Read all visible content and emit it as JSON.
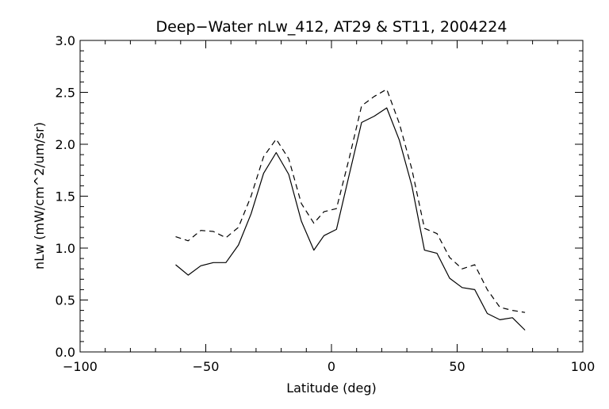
{
  "chart_data": {
    "type": "line",
    "title": "Deep−Water nLw_412, AT29 & ST11, 2004224",
    "xlabel": "Latitude (deg)",
    "ylabel": "nLw (mW/cm^2/um/sr)",
    "xlim": [
      -100,
      100
    ],
    "ylim": [
      0.0,
      3.0
    ],
    "xticks": [
      -100,
      -50,
      0,
      50,
      100
    ],
    "xtick_labels": [
      "−100",
      "−50",
      "0",
      "50",
      "100"
    ],
    "yticks": [
      0.0,
      0.5,
      1.0,
      1.5,
      2.0,
      2.5,
      3.0
    ],
    "ytick_labels": [
      "0.0",
      "0.5",
      "1.0",
      "1.5",
      "2.0",
      "2.5",
      "3.0"
    ],
    "grid": false,
    "legend": "none",
    "series": [
      {
        "style": "solid",
        "color": "#000000",
        "x": [
          -62,
          -57,
          -52,
          -47,
          -42,
          -37,
          -32,
          -27,
          -22,
          -17,
          -12,
          -7,
          -3,
          2,
          7,
          12,
          17,
          22,
          27,
          32,
          37,
          42,
          47,
          52,
          57,
          62,
          67,
          72,
          77
        ],
        "y": [
          0.84,
          0.74,
          0.83,
          0.86,
          0.86,
          1.03,
          1.33,
          1.72,
          1.92,
          1.71,
          1.26,
          0.98,
          1.12,
          1.18,
          1.7,
          2.21,
          2.27,
          2.35,
          2.04,
          1.6,
          0.98,
          0.95,
          0.71,
          0.62,
          0.6,
          0.37,
          0.31,
          0.33,
          0.21
        ]
      },
      {
        "style": "dashed",
        "color": "#000000",
        "x": [
          -62,
          -57,
          -52,
          -47,
          -42,
          -37,
          -32,
          -27,
          -22,
          -17,
          -12,
          -7,
          -3,
          2,
          7,
          12,
          17,
          22,
          27,
          32,
          37,
          42,
          47,
          52,
          57,
          62,
          67,
          72,
          77
        ],
        "y": [
          1.11,
          1.07,
          1.17,
          1.16,
          1.1,
          1.2,
          1.5,
          1.88,
          2.05,
          1.86,
          1.43,
          1.24,
          1.35,
          1.38,
          1.86,
          2.37,
          2.46,
          2.53,
          2.2,
          1.76,
          1.19,
          1.14,
          0.91,
          0.8,
          0.84,
          0.6,
          0.43,
          0.4,
          0.38
        ]
      }
    ]
  }
}
